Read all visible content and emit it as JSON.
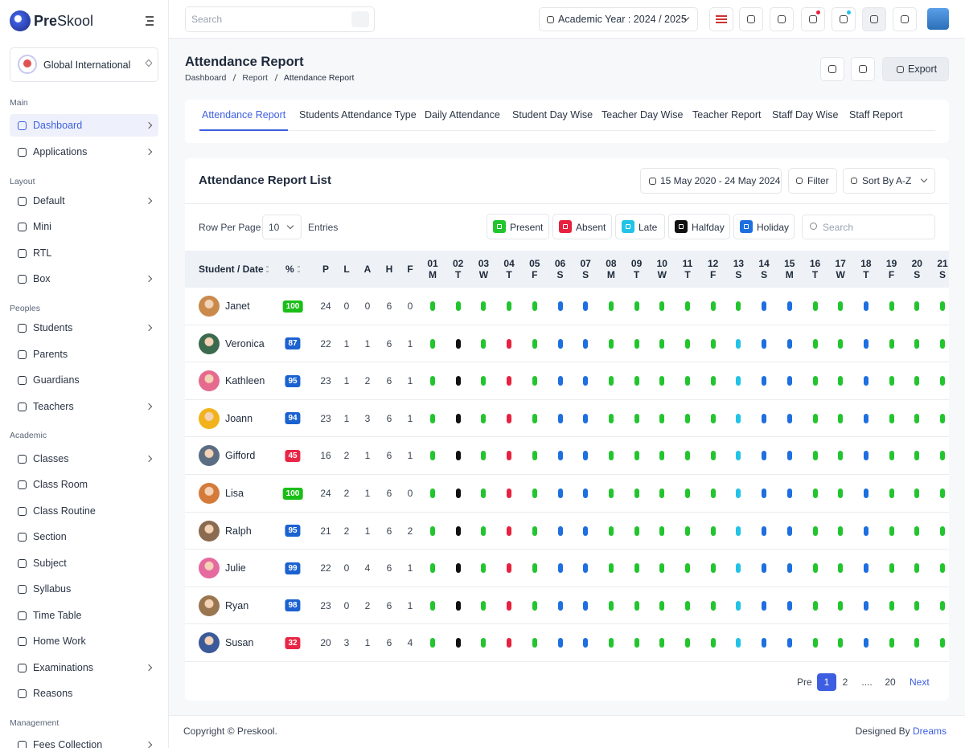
{
  "brand": {
    "bold": "Pre",
    "rest": "Skool"
  },
  "school": "Global International",
  "sidebar": [
    {
      "section": "Main",
      "items": [
        {
          "label": "Dashboard",
          "submenu": true,
          "active": true
        },
        {
          "label": "Applications",
          "submenu": true
        }
      ]
    },
    {
      "section": "Layout",
      "items": [
        {
          "label": "Default",
          "submenu": true
        },
        {
          "label": "Mini"
        },
        {
          "label": "RTL"
        },
        {
          "label": "Box",
          "submenu": true
        }
      ]
    },
    {
      "section": "Peoples",
      "items": [
        {
          "label": "Students",
          "submenu": true
        },
        {
          "label": "Parents"
        },
        {
          "label": "Guardians"
        },
        {
          "label": "Teachers",
          "submenu": true
        }
      ]
    },
    {
      "section": "Academic",
      "items": [
        {
          "label": "Classes",
          "submenu": true
        },
        {
          "label": "Class Room"
        },
        {
          "label": "Class Routine"
        },
        {
          "label": "Section"
        },
        {
          "label": "Subject"
        },
        {
          "label": "Syllabus"
        },
        {
          "label": "Time Table"
        },
        {
          "label": "Home Work"
        },
        {
          "label": "Examinations",
          "submenu": true
        },
        {
          "label": "Reasons"
        }
      ]
    },
    {
      "section": "Management",
      "items": [
        {
          "label": "Fees Collection",
          "submenu": true
        }
      ]
    }
  ],
  "header": {
    "search_placeholder": "Search",
    "academic_year": "Academic Year : 2024 / 2025"
  },
  "page": {
    "title": "Attendance Report",
    "breadcrumb": [
      "Dashboard",
      "Report",
      "Attendance Report"
    ],
    "export": "Export"
  },
  "tabs": [
    {
      "label": "Attendance Report",
      "active": true
    },
    {
      "label": "Students Attendance Type"
    },
    {
      "label": "Daily Attendance"
    },
    {
      "label": "Student Day Wise"
    },
    {
      "label": "Teacher Day Wise"
    },
    {
      "label": "Teacher Report"
    },
    {
      "label": "Staff Day Wise"
    },
    {
      "label": "Staff Report"
    }
  ],
  "list": {
    "title": "Attendance Report List",
    "date_range": "15 May 2020 - 24 May 2024",
    "filter": "Filter",
    "sort": "Sort By A-Z",
    "rows_per_page_label": "Row Per Page",
    "rows_per_page": 10,
    "entries": "Entries",
    "search_placeholder": "Search",
    "legend": [
      {
        "label": "Present",
        "color": "#22c52e"
      },
      {
        "label": "Absent",
        "color": "#e8213f"
      },
      {
        "label": "Late",
        "color": "#22c3e6"
      },
      {
        "label": "Halfday",
        "color": "#111111"
      },
      {
        "label": "Holiday",
        "color": "#1e6fe0"
      }
    ]
  },
  "table": {
    "columns": [
      "Student / Date",
      "%",
      "P",
      "L",
      "A",
      "H",
      "F"
    ],
    "days": [
      {
        "day": "01",
        "weekday": "M"
      },
      {
        "day": "02",
        "weekday": "T"
      },
      {
        "day": "03",
        "weekday": "W"
      },
      {
        "day": "04",
        "weekday": "T"
      },
      {
        "day": "05",
        "weekday": "F"
      },
      {
        "day": "06",
        "weekday": "S"
      },
      {
        "day": "07",
        "weekday": "S"
      },
      {
        "day": "08",
        "weekday": "M"
      },
      {
        "day": "09",
        "weekday": "T"
      },
      {
        "day": "10",
        "weekday": "W"
      },
      {
        "day": "11",
        "weekday": "T"
      },
      {
        "day": "12",
        "weekday": "F"
      },
      {
        "day": "13",
        "weekday": "S"
      },
      {
        "day": "14",
        "weekday": "S"
      },
      {
        "day": "15",
        "weekday": "M"
      },
      {
        "day": "16",
        "weekday": "T"
      },
      {
        "day": "17",
        "weekday": "W"
      },
      {
        "day": "18",
        "weekday": "T"
      },
      {
        "day": "19",
        "weekday": "F"
      },
      {
        "day": "20",
        "weekday": "S"
      },
      {
        "day": "21",
        "weekday": "S"
      }
    ],
    "rows": [
      {
        "name": "Janet",
        "percent": 100,
        "badge_color": "#1abe17",
        "counts": [
          24,
          0,
          0,
          6,
          0
        ],
        "status": [
          "Present",
          "Present",
          "Present",
          "Present",
          "Present",
          "Holiday",
          "Holiday",
          "Present",
          "Present",
          "Present",
          "Present",
          "Present",
          "Present",
          "Holiday",
          "Holiday",
          "Present",
          "Present",
          "Holiday",
          "Present",
          "Present",
          "Present"
        ]
      },
      {
        "name": "Veronica",
        "percent": 87,
        "badge_color": "#1b62d0",
        "counts": [
          22,
          1,
          1,
          6,
          1
        ],
        "status": [
          "Present",
          "Halfday",
          "Present",
          "Absent",
          "Present",
          "Holiday",
          "Holiday",
          "Present",
          "Present",
          "Present",
          "Present",
          "Present",
          "Late",
          "Holiday",
          "Holiday",
          "Present",
          "Present",
          "Holiday",
          "Present",
          "Present",
          "Present"
        ]
      },
      {
        "name": "Kathleen",
        "percent": 95,
        "badge_color": "#1b62d0",
        "counts": [
          23,
          1,
          2,
          6,
          1
        ],
        "status": [
          "Present",
          "Halfday",
          "Present",
          "Absent",
          "Present",
          "Holiday",
          "Holiday",
          "Present",
          "Present",
          "Present",
          "Present",
          "Present",
          "Late",
          "Holiday",
          "Holiday",
          "Present",
          "Present",
          "Holiday",
          "Present",
          "Present",
          "Present"
        ]
      },
      {
        "name": "Joann",
        "percent": 94,
        "badge_color": "#1b62d0",
        "counts": [
          23,
          1,
          3,
          6,
          1
        ],
        "status": [
          "Present",
          "Halfday",
          "Present",
          "Absent",
          "Present",
          "Holiday",
          "Holiday",
          "Present",
          "Present",
          "Present",
          "Present",
          "Present",
          "Late",
          "Holiday",
          "Holiday",
          "Present",
          "Present",
          "Holiday",
          "Present",
          "Present",
          "Present"
        ]
      },
      {
        "name": "Gifford",
        "percent": 45,
        "badge_color": "#e82646",
        "counts": [
          16,
          2,
          1,
          6,
          1
        ],
        "status": [
          "Present",
          "Halfday",
          "Present",
          "Absent",
          "Present",
          "Holiday",
          "Holiday",
          "Present",
          "Present",
          "Present",
          "Present",
          "Present",
          "Late",
          "Holiday",
          "Holiday",
          "Present",
          "Present",
          "Holiday",
          "Present",
          "Present",
          "Present"
        ]
      },
      {
        "name": "Lisa",
        "percent": 100,
        "badge_color": "#1abe17",
        "counts": [
          24,
          2,
          1,
          6,
          0
        ],
        "status": [
          "Present",
          "Halfday",
          "Present",
          "Absent",
          "Present",
          "Holiday",
          "Holiday",
          "Present",
          "Present",
          "Present",
          "Present",
          "Present",
          "Late",
          "Holiday",
          "Holiday",
          "Present",
          "Present",
          "Holiday",
          "Present",
          "Present",
          "Present"
        ]
      },
      {
        "name": "Ralph",
        "percent": 95,
        "badge_color": "#1b62d0",
        "counts": [
          21,
          2,
          1,
          6,
          2
        ],
        "status": [
          "Present",
          "Halfday",
          "Present",
          "Absent",
          "Present",
          "Holiday",
          "Holiday",
          "Present",
          "Present",
          "Present",
          "Present",
          "Present",
          "Late",
          "Holiday",
          "Holiday",
          "Present",
          "Present",
          "Holiday",
          "Present",
          "Present",
          "Present"
        ]
      },
      {
        "name": "Julie",
        "percent": 99,
        "badge_color": "#1b62d0",
        "counts": [
          22,
          0,
          4,
          6,
          1
        ],
        "status": [
          "Present",
          "Halfday",
          "Present",
          "Absent",
          "Present",
          "Holiday",
          "Holiday",
          "Present",
          "Present",
          "Present",
          "Present",
          "Present",
          "Late",
          "Holiday",
          "Holiday",
          "Present",
          "Present",
          "Holiday",
          "Present",
          "Present",
          "Present"
        ]
      },
      {
        "name": "Ryan",
        "percent": 98,
        "badge_color": "#1b62d0",
        "counts": [
          23,
          0,
          2,
          6,
          1
        ],
        "status": [
          "Present",
          "Halfday",
          "Present",
          "Absent",
          "Present",
          "Holiday",
          "Holiday",
          "Present",
          "Present",
          "Present",
          "Present",
          "Present",
          "Late",
          "Holiday",
          "Holiday",
          "Present",
          "Present",
          "Holiday",
          "Present",
          "Present",
          "Present"
        ]
      },
      {
        "name": "Susan",
        "percent": 32,
        "badge_color": "#e82646",
        "counts": [
          20,
          3,
          1,
          6,
          4
        ],
        "status": [
          "Present",
          "Halfday",
          "Present",
          "Absent",
          "Present",
          "Holiday",
          "Holiday",
          "Present",
          "Present",
          "Present",
          "Present",
          "Present",
          "Late",
          "Holiday",
          "Holiday",
          "Present",
          "Present",
          "Holiday",
          "Present",
          "Present",
          "Present"
        ]
      }
    ]
  },
  "pagination": {
    "prev": "Pre",
    "pages": [
      {
        "label": "1",
        "current": true
      },
      {
        "label": "2"
      },
      {
        "label": "...."
      },
      {
        "label": "20"
      }
    ],
    "next": "Next"
  },
  "footer": {
    "copyright": "Copyright © Preskool.",
    "designed_by": "Designed By",
    "designer": "Dreams"
  }
}
